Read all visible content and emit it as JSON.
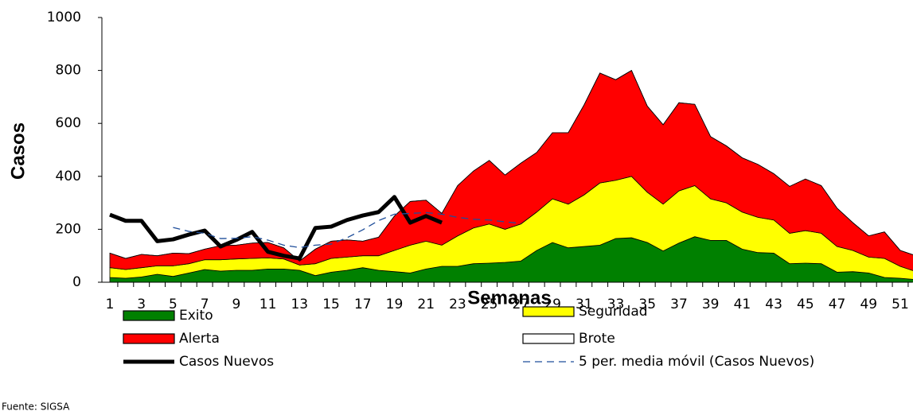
{
  "chart_data": {
    "type": "area",
    "xlabel": "Semanas",
    "ylabel": "Casos",
    "source": "Fuente: SIGSA",
    "categories": [
      1,
      null,
      3,
      null,
      5,
      null,
      7,
      null,
      9,
      null,
      11,
      null,
      13,
      null,
      15,
      null,
      17,
      null,
      19,
      null,
      21,
      null,
      23,
      null,
      25,
      null,
      27,
      null,
      29,
      null,
      31,
      null,
      33,
      null,
      35,
      null,
      37,
      null,
      39,
      null,
      41,
      null,
      43,
      null,
      45,
      null,
      47,
      null,
      49,
      null,
      51,
      null
    ],
    "ylim": [
      0,
      1000
    ],
    "yticks": [
      0,
      200,
      400,
      600,
      800,
      1000
    ],
    "series": [
      {
        "name": "Exito",
        "type": "area",
        "color": "#008000",
        "values": [
          18,
          15,
          20,
          30,
          22,
          35,
          48,
          42,
          45,
          45,
          50,
          50,
          45,
          25,
          38,
          45,
          55,
          45,
          40,
          35,
          50,
          60,
          60,
          70,
          72,
          75,
          80,
          120,
          150,
          130,
          135,
          140,
          165,
          168,
          150,
          118,
          148,
          172,
          158,
          158,
          125,
          112,
          110,
          70,
          72,
          70,
          38,
          40,
          35,
          18,
          15,
          10
        ]
      },
      {
        "name": "Seguridad",
        "type": "area",
        "color": "#ffff00",
        "values": [
          37,
          33,
          35,
          32,
          40,
          35,
          37,
          43,
          43,
          45,
          42,
          38,
          20,
          45,
          52,
          50,
          45,
          55,
          80,
          105,
          105,
          80,
          115,
          135,
          148,
          125,
          140,
          145,
          165,
          165,
          195,
          235,
          220,
          232,
          190,
          177,
          197,
          193,
          157,
          142,
          140,
          133,
          125,
          115,
          123,
          115,
          97,
          80,
          60,
          72,
          45,
          30
        ]
      },
      {
        "name": "Alerta",
        "type": "area",
        "color": "#ff0000",
        "values": [
          55,
          42,
          50,
          38,
          48,
          38,
          40,
          53,
          52,
          58,
          58,
          42,
          15,
          55,
          65,
          65,
          55,
          70,
          130,
          165,
          155,
          120,
          190,
          215,
          240,
          205,
          230,
          225,
          250,
          270,
          340,
          415,
          380,
          400,
          325,
          300,
          333,
          307,
          235,
          215,
          205,
          200,
          175,
          177,
          195,
          180,
          145,
          105,
          80,
          100,
          60,
          60
        ]
      },
      {
        "name": "Brote",
        "type": "area",
        "color": "#ffffff",
        "values": [
          0,
          0,
          0,
          0,
          0,
          0,
          0,
          0,
          0,
          0,
          0,
          0,
          0,
          0,
          0,
          0,
          0,
          0,
          0,
          0,
          0,
          0,
          0,
          0,
          0,
          0,
          0,
          0,
          0,
          0,
          0,
          0,
          0,
          0,
          0,
          0,
          0,
          0,
          0,
          0,
          0,
          0,
          0,
          0,
          0,
          0,
          0,
          0,
          0,
          0,
          0,
          0
        ]
      },
      {
        "name": "Casos Nuevos",
        "type": "line",
        "color": "#000000",
        "values": [
          255,
          232,
          232,
          155,
          162,
          180,
          195,
          135,
          160,
          190,
          115,
          100,
          90,
          205,
          210,
          235,
          252,
          265,
          322,
          225,
          250,
          225,
          null,
          null,
          null,
          null,
          null,
          null,
          null,
          null,
          null,
          null,
          null,
          null,
          null,
          null,
          null,
          null,
          null,
          null,
          null,
          null,
          null,
          null,
          null,
          null,
          null,
          null,
          null,
          null,
          null,
          null
        ]
      },
      {
        "name": "5 per. media móvil (Casos Nuevos)",
        "type": "line",
        "style": "dashed",
        "color": "#1f4e9a",
        "values": [
          null,
          null,
          null,
          null,
          207,
          192,
          185,
          165,
          166,
          172,
          159,
          140,
          131,
          140,
          144,
          168,
          198,
          233,
          257,
          260,
          263,
          257,
          245,
          238,
          235,
          228,
          222,
          null,
          null,
          null,
          null,
          null,
          null,
          null,
          null,
          null,
          null,
          null,
          null,
          null,
          null,
          null,
          null,
          null,
          null,
          null,
          null,
          null,
          null,
          null,
          null,
          null
        ]
      }
    ]
  }
}
